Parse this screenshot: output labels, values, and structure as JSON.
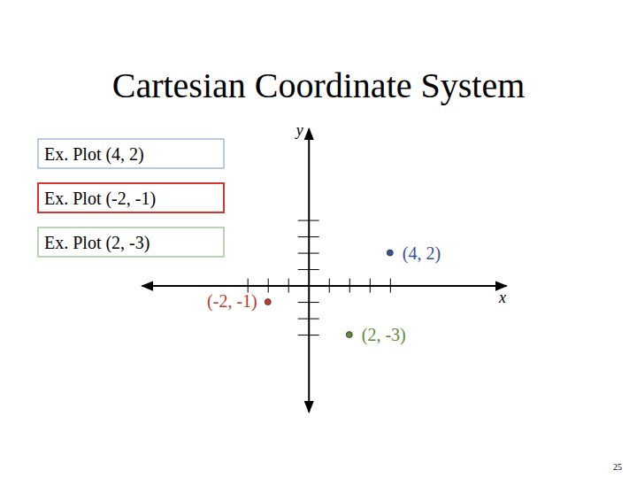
{
  "chart_data": {
    "type": "scatter",
    "title": "Cartesian Coordinate System",
    "annotations": [
      "Ex. Plot (4, 2)",
      "Ex. Plot (-2, -1)",
      "Ex. Plot (2, -3)"
    ],
    "x_label": "x",
    "y_label": "y",
    "x": [
      4,
      -2,
      2
    ],
    "values": [
      2,
      -1,
      -3
    ],
    "value_labels": [
      "(4, 2)",
      "(-2, -1)",
      "(2, -3)"
    ],
    "data_labels": true,
    "colors": [
      "#3a4f9a",
      "#c0392b",
      "#5d8a3a"
    ],
    "xlim": [
      -8.2,
      9.7
    ],
    "xticks": [
      -3,
      -2,
      -1,
      1,
      2,
      3,
      4
    ],
    "ylim": [
      -7.7,
      9.6
    ],
    "yticks": [
      -3,
      -2,
      -1,
      1,
      2,
      3,
      4
    ],
    "tick_labels": false,
    "grid": false
  },
  "page": {
    "number": 25
  }
}
